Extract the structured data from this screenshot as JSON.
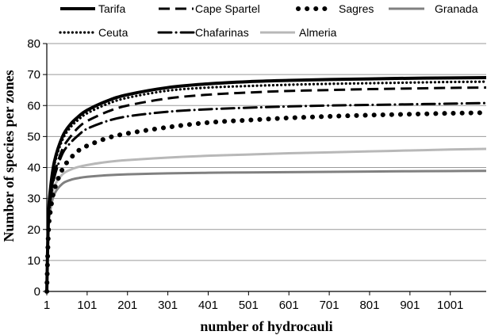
{
  "chart_data": {
    "type": "line",
    "title": "",
    "xlabel": "number of hydrocauli",
    "ylabel": "Number of species per zones",
    "xlim": [
      1,
      1090
    ],
    "ylim": [
      0,
      80
    ],
    "x_ticks": [
      "1",
      "101",
      "201",
      "301",
      "401",
      "501",
      "601",
      "701",
      "801",
      "901",
      "1001"
    ],
    "y_ticks": [
      "0",
      "10",
      "20",
      "30",
      "40",
      "50",
      "60",
      "70",
      "80"
    ],
    "grid": "horizontal",
    "legend_position": "top",
    "series": [
      {
        "name": "Tarifa",
        "color": "#000000",
        "style": "solid",
        "x": [
          1,
          5,
          10,
          20,
          40,
          60,
          80,
          101,
          151,
          201,
          301,
          401,
          501,
          601,
          701,
          801,
          901,
          1001,
          1090
        ],
        "values": [
          0,
          24,
          33,
          42,
          50,
          54,
          56.5,
          58.5,
          61.5,
          63.5,
          65.8,
          67,
          67.7,
          68.1,
          68.4,
          68.6,
          68.8,
          68.9,
          69
        ]
      },
      {
        "name": "Cape Spartel",
        "color": "#000000",
        "style": "dashed",
        "x": [
          1,
          5,
          10,
          20,
          40,
          60,
          80,
          101,
          151,
          201,
          301,
          401,
          501,
          601,
          701,
          801,
          901,
          1001,
          1090
        ],
        "values": [
          0,
          22,
          30,
          38,
          46,
          50,
          53,
          55,
          58,
          60,
          62.3,
          63.5,
          64.2,
          64.7,
          65,
          65.3,
          65.5,
          65.7,
          65.8
        ]
      },
      {
        "name": "Sagres",
        "color": "#000000",
        "style": "dotted-heavy",
        "x": [
          1,
          5,
          10,
          20,
          40,
          60,
          80,
          101,
          151,
          201,
          301,
          401,
          501,
          601,
          701,
          801,
          901,
          1001,
          1090
        ],
        "values": [
          0,
          19,
          26,
          33,
          39.5,
          43,
          45.5,
          47,
          49.5,
          51,
          53,
          54.5,
          55.3,
          56,
          56.5,
          56.9,
          57.2,
          57.5,
          57.7
        ]
      },
      {
        "name": "Granada",
        "color": "#808080",
        "style": "solid",
        "x": [
          1,
          5,
          10,
          20,
          40,
          60,
          80,
          101,
          151,
          201,
          301,
          401,
          501,
          601,
          701,
          801,
          901,
          1001,
          1090
        ],
        "values": [
          0,
          20,
          26.5,
          31.5,
          34.8,
          36,
          36.6,
          37,
          37.5,
          37.8,
          38.1,
          38.3,
          38.4,
          38.5,
          38.6,
          38.7,
          38.8,
          38.85,
          38.9
        ]
      },
      {
        "name": "Ceuta",
        "color": "#000000",
        "style": "dotted",
        "x": [
          1,
          5,
          10,
          20,
          40,
          60,
          80,
          101,
          151,
          201,
          301,
          401,
          501,
          601,
          701,
          801,
          901,
          1001,
          1090
        ],
        "values": [
          0,
          23,
          32,
          41,
          49,
          53,
          55.5,
          57.5,
          60.5,
          62.5,
          64.8,
          65.8,
          66.3,
          66.7,
          67,
          67.2,
          67.4,
          67.6,
          67.7
        ]
      },
      {
        "name": "Chafarinas",
        "color": "#000000",
        "style": "dash-dot",
        "x": [
          1,
          5,
          10,
          20,
          40,
          60,
          80,
          101,
          151,
          201,
          301,
          401,
          501,
          601,
          701,
          801,
          901,
          1001,
          1090
        ],
        "values": [
          0,
          21,
          29,
          37,
          44.5,
          48,
          50.5,
          52.5,
          55,
          56.5,
          58,
          58.8,
          59.3,
          59.7,
          60,
          60.2,
          60.4,
          60.6,
          60.8
        ]
      },
      {
        "name": "Almeria",
        "color": "#b8b8b8",
        "style": "solid",
        "x": [
          1,
          5,
          10,
          20,
          40,
          60,
          80,
          101,
          151,
          201,
          301,
          401,
          501,
          601,
          701,
          801,
          901,
          1001,
          1090
        ],
        "values": [
          0,
          21,
          28.5,
          34,
          37.8,
          39.3,
          40.2,
          40.8,
          41.8,
          42.4,
          43.2,
          43.8,
          44.2,
          44.6,
          44.9,
          45.2,
          45.5,
          45.8,
          46
        ]
      }
    ]
  }
}
